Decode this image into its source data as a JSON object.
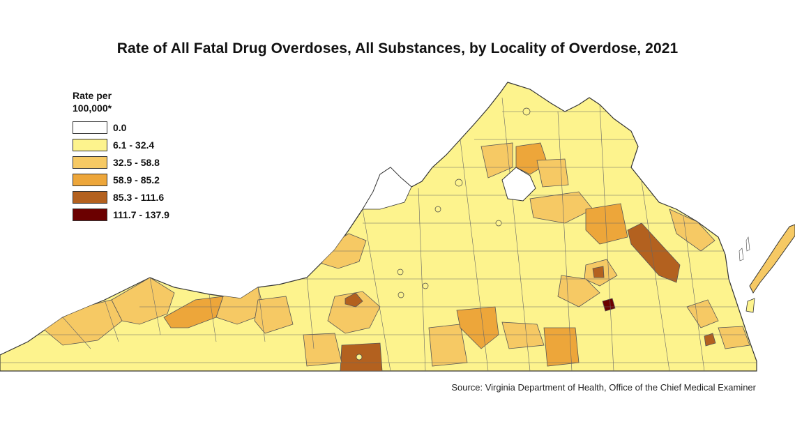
{
  "title": "Rate of All Fatal Drug Overdoses, All Substances, by Locality of Overdose, 2021",
  "legend": {
    "title_line1": "Rate per",
    "title_line2": "100,000*",
    "items": [
      {
        "label": "0.0",
        "color": "#ffffff"
      },
      {
        "label": "6.1 - 32.4",
        "color": "#fdf38d"
      },
      {
        "label": "32.5 - 58.8",
        "color": "#f6c964"
      },
      {
        "label": "58.9 - 85.2",
        "color": "#eda63a"
      },
      {
        "label": "85.3 - 111.6",
        "color": "#b3611f"
      },
      {
        "label": "111.7 - 137.9",
        "color": "#6b0000"
      }
    ]
  },
  "source": "Source: Virginia Department of Health, Office of the Chief Medical Examiner"
}
